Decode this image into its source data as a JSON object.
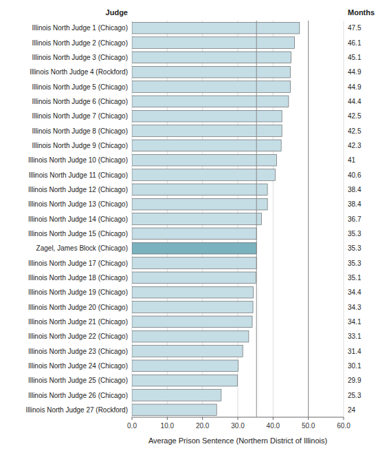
{
  "chart_data": {
    "type": "bar",
    "orientation": "horizontal",
    "categories": [
      "Illinois North Judge 1 (Chicago)",
      "Illinois North Judge 2 (Chicago)",
      "Illinois North Judge 3 (Chicago)",
      "Illinois North Judge 4 (Rockford)",
      "Illinois North Judge 5 (Chicago)",
      "Illinois North Judge 6 (Chicago)",
      "Illinois North Judge 7 (Chicago)",
      "Illinois North Judge 8 (Chicago)",
      "Illinois North Judge 9 (Chicago)",
      "Illinois North Judge 10 (Chicago)",
      "Illinois North Judge 11 (Chicago)",
      "Illinois North Judge 12 (Chicago)",
      "Illinois North Judge 13 (Chicago)",
      "Illinois North Judge 14 (Chicago)",
      "Illinois North Judge 15 (Chicago)",
      "Zagel, James Block (Chicago)",
      "Illinois North Judge 17 (Chicago)",
      "Illinois North Judge 18 (Chicago)",
      "Illinois North Judge 19 (Chicago)",
      "Illinois North Judge 20 (Chicago)",
      "Illinois North Judge 21 (Chicago)",
      "Illinois North Judge 22 (Chicago)",
      "Illinois North Judge 23 (Chicago)",
      "Illinois North Judge 24 (Chicago)",
      "Illinois North Judge 25 (Chicago)",
      "Illinois North Judge 26 (Chicago)",
      "Illinois North Judge 27 (Rockford)"
    ],
    "values": [
      47.5,
      46.1,
      45.1,
      44.9,
      44.9,
      44.4,
      42.5,
      42.5,
      42.3,
      41.0,
      40.6,
      38.4,
      38.4,
      36.7,
      35.3,
      35.3,
      35.3,
      35.1,
      34.4,
      34.3,
      34.1,
      33.1,
      31.4,
      30.1,
      29.9,
      25.3,
      24.0
    ],
    "colors": [
      "#c5dde5",
      "#c5dde5",
      "#c5dde5",
      "#c5dde5",
      "#c5dde5",
      "#c5dde5",
      "#c5dde5",
      "#c5dde5",
      "#c5dde5",
      "#c5dde5",
      "#c5dde5",
      "#c5dde5",
      "#c5dde5",
      "#c5dde5",
      "#c5dde5",
      "#7ab3bf",
      "#c5dde5",
      "#c5dde5",
      "#c5dde5",
      "#c5dde5",
      "#c5dde5",
      "#c5dde5",
      "#c5dde5",
      "#c5dde5",
      "#c5dde5",
      "#c5dde5",
      "#c5dde5"
    ],
    "xlabel": "Average Prison Sentence (Northern District of Illinois)",
    "ylabel": "Judge",
    "annotations": [
      "Months"
    ],
    "xlim": [
      0,
      60.0
    ],
    "xticks": [
      {
        "value": 0.0,
        "label": "0.0"
      },
      {
        "value": 10.0,
        "label": "10.0"
      },
      {
        "value": 20.0,
        "label": "20.0"
      },
      {
        "value": 30.0,
        "label": "30.0"
      },
      {
        "value": 40.0,
        "label": "40.0"
      },
      {
        "value": 50.0,
        "label": "50.0"
      },
      {
        "value": 60.0,
        "label": "60.0"
      }
    ],
    "reference_lines": [
      35.3,
      50.0
    ],
    "grid": true,
    "data_labels": true
  }
}
